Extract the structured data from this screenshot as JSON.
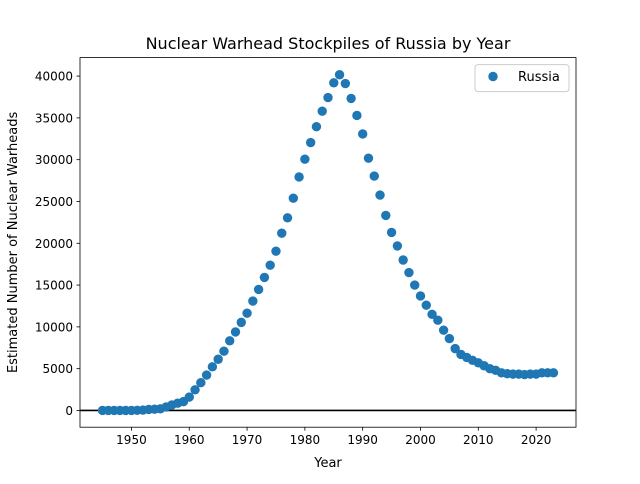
{
  "colors": {
    "series": "#1f77b4",
    "zero_line": "#000000",
    "background": "#ffffff"
  },
  "chart_data": {
    "type": "scatter",
    "title": "Nuclear Warhead Stockpiles of Russia by Year",
    "xlabel": "Year",
    "ylabel": "Estimated Number of Nuclear Warheads",
    "xlim": [
      1941.1,
      2026.9
    ],
    "ylim": [
      -2000,
      42210
    ],
    "xticks": [
      1950,
      1960,
      1970,
      1980,
      1990,
      2000,
      2010,
      2020
    ],
    "yticks": [
      0,
      5000,
      10000,
      15000,
      20000,
      25000,
      30000,
      35000,
      40000
    ],
    "grid": false,
    "legend": {
      "position": "top-right"
    },
    "reference_line": {
      "y": 0,
      "color": "#000000"
    },
    "series": [
      {
        "name": "Russia",
        "color": "#1f77b4",
        "x": [
          1945,
          1946,
          1947,
          1948,
          1949,
          1950,
          1951,
          1952,
          1953,
          1954,
          1955,
          1956,
          1957,
          1958,
          1959,
          1960,
          1961,
          1962,
          1963,
          1964,
          1965,
          1966,
          1967,
          1968,
          1969,
          1970,
          1971,
          1972,
          1973,
          1974,
          1975,
          1976,
          1977,
          1978,
          1979,
          1980,
          1981,
          1982,
          1983,
          1984,
          1985,
          1986,
          1987,
          1988,
          1989,
          1990,
          1991,
          1992,
          1993,
          1994,
          1995,
          1996,
          1997,
          1998,
          1999,
          2000,
          2001,
          2002,
          2003,
          2004,
          2005,
          2006,
          2007,
          2008,
          2009,
          2010,
          2011,
          2012,
          2013,
          2014,
          2015,
          2016,
          2017,
          2018,
          2019,
          2020,
          2021,
          2022,
          2023
        ],
        "values": [
          0,
          0,
          0,
          0,
          1,
          5,
          25,
          50,
          120,
          150,
          200,
          426,
          660,
          869,
          1060,
          1605,
          2471,
          3322,
          4238,
          5221,
          6129,
          7089,
          8339,
          9399,
          10538,
          11643,
          13092,
          14478,
          15915,
          17385,
          19055,
          21205,
          23044,
          25393,
          27935,
          30062,
          32049,
          33952,
          35804,
          37431,
          39197,
          40159,
          39107,
          37330,
          35287,
          33074,
          30179,
          28035,
          25766,
          23336,
          21300,
          19686,
          18000,
          16500,
          15000,
          13700,
          12600,
          11500,
          10800,
          9600,
          8600,
          7400,
          6700,
          6350,
          6000,
          5700,
          5350,
          5000,
          4800,
          4500,
          4400,
          4350,
          4350,
          4300,
          4350,
          4350,
          4500,
          4500,
          4500
        ]
      }
    ]
  }
}
